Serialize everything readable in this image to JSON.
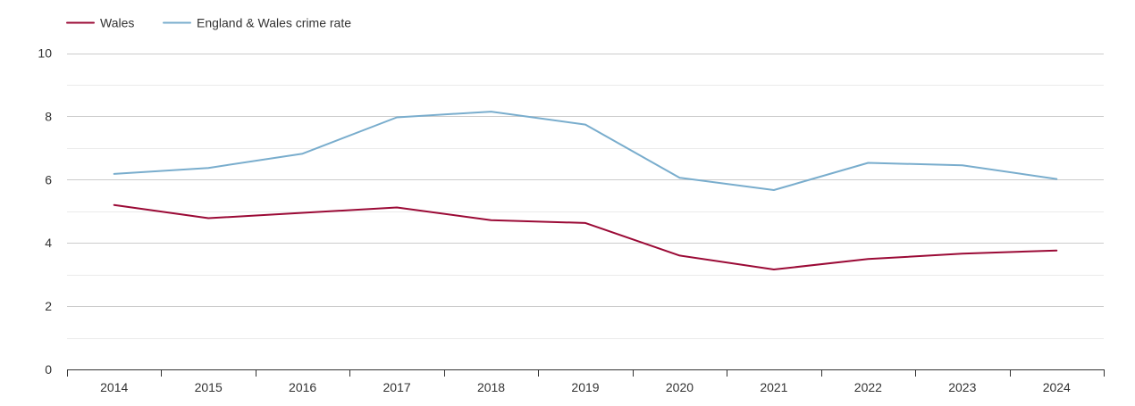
{
  "chart_data": {
    "type": "line",
    "title": "",
    "xlabel": "",
    "ylabel": "",
    "x": [
      "2014",
      "2015",
      "2016",
      "2017",
      "2018",
      "2019",
      "2020",
      "2021",
      "2022",
      "2023",
      "2024"
    ],
    "ylim": [
      0,
      10
    ],
    "yticks": [
      "0",
      "2",
      "4",
      "6",
      "8",
      "10"
    ],
    "grid": true,
    "legend_position": "top-left",
    "series": [
      {
        "name": "Wales",
        "color": "#9b0a36",
        "values": [
          5.2,
          4.78,
          4.95,
          5.12,
          4.72,
          4.63,
          3.6,
          3.16,
          3.49,
          3.66,
          3.76
        ]
      },
      {
        "name": "England & Wales crime rate",
        "color": "#79adcd",
        "values": [
          6.18,
          6.37,
          6.82,
          7.97,
          8.15,
          7.74,
          6.06,
          5.67,
          6.53,
          6.45,
          6.02
        ]
      }
    ]
  }
}
